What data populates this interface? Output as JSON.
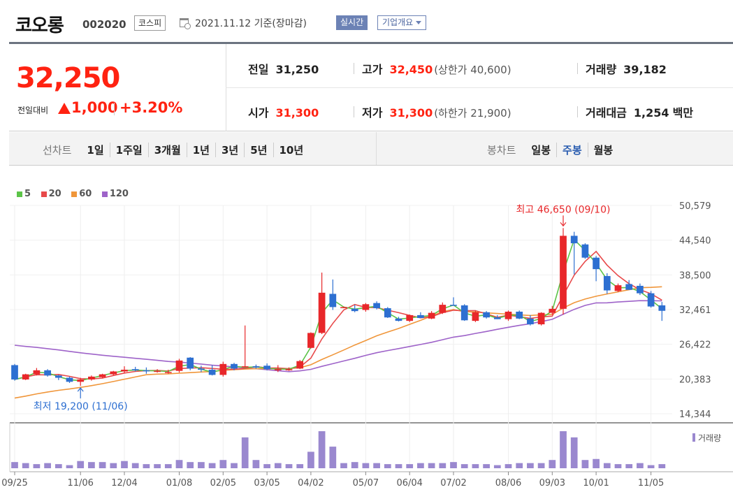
{
  "header": {
    "name": "코오롱",
    "code": "002020",
    "market": "코스피",
    "date": "2021.11.12 기준(장마감)",
    "realtime_label": "실시간",
    "company_label": "기업개요"
  },
  "quote": {
    "price": "32,250",
    "diff_label": "전일대비",
    "diff_value": "1,000",
    "diff_pct": "+3.20%",
    "prev_label": "전일",
    "prev": "31,250",
    "open_label": "시가",
    "open": "31,300",
    "high_label": "고가",
    "high": "32,450",
    "upper_limit": "(상한가 40,600)",
    "low_label": "저가",
    "low": "31,300",
    "lower_limit": "(하한가 21,900)",
    "volume_label": "거래량",
    "volume": "39,182",
    "amount_label": "거래대금",
    "amount": "1,254",
    "amount_unit": "백만"
  },
  "period_bar": {
    "left_label": "선차트",
    "ranges": [
      "1일",
      "1주일",
      "3개월",
      "1년",
      "3년",
      "5년",
      "10년"
    ],
    "right_label": "봉차트",
    "candle_types": [
      "일봉",
      "주봉",
      "월봉"
    ],
    "active_candle": 1
  },
  "colors": {
    "up": "#e8272a",
    "down": "#2d6fd1",
    "ma5": "#5cc448",
    "ma20": "#e8494a",
    "ma60": "#f0963a",
    "ma120": "#9e63c9",
    "volume": "#9a88cf"
  },
  "chart_data": {
    "type": "candlestick",
    "legend": [
      {
        "name": "5",
        "color": "#5cc448"
      },
      {
        "name": "20",
        "color": "#e8494a"
      },
      {
        "name": "60",
        "color": "#f0963a"
      },
      {
        "name": "120",
        "color": "#9e63c9"
      }
    ],
    "y_ticks": [
      "50,579",
      "44,540",
      "38,500",
      "32,461",
      "26,422",
      "20,383",
      "14,344"
    ],
    "ylim": [
      14344,
      50579
    ],
    "x_tick_labels": [
      "09/25",
      "11/06",
      "12/04",
      "01/08",
      "02/05",
      "03/05",
      "04/02",
      "05/07",
      "06/04",
      "07/02",
      "08/06",
      "09/03",
      "10/01",
      "11/05"
    ],
    "x_tick_index": [
      0,
      6,
      10,
      15,
      19,
      23,
      27,
      32,
      36,
      40,
      45,
      49,
      53,
      58
    ],
    "max_annotation": "최고 46,650 (09/10)",
    "max_index": 50,
    "max_value": 46650,
    "min_annotation": "최저 19,200 (11/06)",
    "min_index": 6,
    "min_value": 19200,
    "volume_label": "거래량",
    "candles": [
      {
        "o": 22800,
        "h": 23000,
        "l": 20100,
        "c": 20300
      },
      {
        "o": 20300,
        "h": 21300,
        "l": 20200,
        "c": 21200
      },
      {
        "o": 21200,
        "h": 22300,
        "l": 21000,
        "c": 21900
      },
      {
        "o": 21900,
        "h": 22100,
        "l": 20800,
        "c": 21000
      },
      {
        "o": 21000,
        "h": 21100,
        "l": 20200,
        "c": 20600
      },
      {
        "o": 20600,
        "h": 20800,
        "l": 19700,
        "c": 19900
      },
      {
        "o": 19900,
        "h": 20600,
        "l": 19200,
        "c": 20300
      },
      {
        "o": 20300,
        "h": 21000,
        "l": 20100,
        "c": 20800
      },
      {
        "o": 20700,
        "h": 21300,
        "l": 20500,
        "c": 21200
      },
      {
        "o": 21200,
        "h": 21800,
        "l": 21000,
        "c": 21700
      },
      {
        "o": 21700,
        "h": 22600,
        "l": 21400,
        "c": 22000
      },
      {
        "o": 22100,
        "h": 22500,
        "l": 21700,
        "c": 21900
      },
      {
        "o": 21900,
        "h": 22400,
        "l": 21300,
        "c": 21800
      },
      {
        "o": 21800,
        "h": 22100,
        "l": 21500,
        "c": 21800
      },
      {
        "o": 21600,
        "h": 22000,
        "l": 21300,
        "c": 21600
      },
      {
        "o": 21800,
        "h": 23900,
        "l": 21500,
        "c": 23600
      },
      {
        "o": 24100,
        "h": 24200,
        "l": 21900,
        "c": 22200
      },
      {
        "o": 22200,
        "h": 22700,
        "l": 21600,
        "c": 22000
      },
      {
        "o": 22000,
        "h": 22800,
        "l": 21000,
        "c": 21100
      },
      {
        "o": 21100,
        "h": 23400,
        "l": 20800,
        "c": 23000
      },
      {
        "o": 23000,
        "h": 23200,
        "l": 21900,
        "c": 22200
      },
      {
        "o": 22600,
        "h": 29700,
        "l": 22400,
        "c": 22600
      },
      {
        "o": 22600,
        "h": 22900,
        "l": 22200,
        "c": 22400
      },
      {
        "o": 22700,
        "h": 23100,
        "l": 21900,
        "c": 22100
      },
      {
        "o": 21900,
        "h": 22800,
        "l": 21600,
        "c": 22100
      },
      {
        "o": 21900,
        "h": 22400,
        "l": 21800,
        "c": 22100
      },
      {
        "o": 22200,
        "h": 23700,
        "l": 22100,
        "c": 23500
      },
      {
        "o": 25800,
        "h": 28500,
        "l": 25700,
        "c": 28400
      },
      {
        "o": 28400,
        "h": 38900,
        "l": 28200,
        "c": 35400
      },
      {
        "o": 35200,
        "h": 37700,
        "l": 32400,
        "c": 32900
      },
      {
        "o": 32900,
        "h": 33000,
        "l": 32700,
        "c": 32900
      },
      {
        "o": 32600,
        "h": 33300,
        "l": 32000,
        "c": 32200
      },
      {
        "o": 32400,
        "h": 33600,
        "l": 32100,
        "c": 33400
      },
      {
        "o": 33600,
        "h": 33900,
        "l": 32500,
        "c": 32700
      },
      {
        "o": 32700,
        "h": 32900,
        "l": 31000,
        "c": 31100
      },
      {
        "o": 30900,
        "h": 31200,
        "l": 30400,
        "c": 30500
      },
      {
        "o": 30500,
        "h": 31600,
        "l": 30300,
        "c": 31500
      },
      {
        "o": 31500,
        "h": 32000,
        "l": 31200,
        "c": 31000
      },
      {
        "o": 30900,
        "h": 32200,
        "l": 30800,
        "c": 31900
      },
      {
        "o": 31900,
        "h": 33700,
        "l": 31700,
        "c": 33300
      },
      {
        "o": 33300,
        "h": 34600,
        "l": 33200,
        "c": 33200
      },
      {
        "o": 33200,
        "h": 33400,
        "l": 30500,
        "c": 30600
      },
      {
        "o": 30500,
        "h": 32300,
        "l": 30300,
        "c": 32000
      },
      {
        "o": 32000,
        "h": 32200,
        "l": 30900,
        "c": 31100
      },
      {
        "o": 31100,
        "h": 31500,
        "l": 30800,
        "c": 30800
      },
      {
        "o": 30800,
        "h": 32300,
        "l": 30500,
        "c": 32100
      },
      {
        "o": 32100,
        "h": 32300,
        "l": 30800,
        "c": 30900
      },
      {
        "o": 30900,
        "h": 31500,
        "l": 29700,
        "c": 29900
      },
      {
        "o": 29900,
        "h": 32000,
        "l": 29700,
        "c": 31900
      },
      {
        "o": 31900,
        "h": 33100,
        "l": 31600,
        "c": 32600
      },
      {
        "o": 32600,
        "h": 46650,
        "l": 31600,
        "c": 45300
      },
      {
        "o": 45300,
        "h": 46000,
        "l": 38600,
        "c": 44000
      },
      {
        "o": 43800,
        "h": 44000,
        "l": 41300,
        "c": 41500
      },
      {
        "o": 41500,
        "h": 41800,
        "l": 37400,
        "c": 39500
      },
      {
        "o": 38300,
        "h": 38800,
        "l": 35200,
        "c": 35800
      },
      {
        "o": 35700,
        "h": 37000,
        "l": 35500,
        "c": 36700
      },
      {
        "o": 36900,
        "h": 37600,
        "l": 35900,
        "c": 35900
      },
      {
        "o": 36600,
        "h": 37000,
        "l": 35000,
        "c": 35300
      },
      {
        "o": 35300,
        "h": 35700,
        "l": 32800,
        "c": 33000
      },
      {
        "o": 33200,
        "h": 33800,
        "l": 30500,
        "c": 32250
      }
    ],
    "volumes": [
      6,
      5,
      4,
      5,
      4,
      3,
      7,
      6,
      6,
      5,
      7,
      5,
      4,
      4,
      4,
      8,
      6,
      6,
      5,
      8,
      5,
      30,
      8,
      4,
      5,
      4,
      4,
      16,
      36,
      21,
      5,
      6,
      5,
      5,
      4,
      4,
      4,
      5,
      5,
      5,
      6,
      4,
      4,
      4,
      3,
      4,
      5,
      5,
      5,
      8,
      36,
      30,
      8,
      9,
      5,
      4,
      4,
      5,
      3,
      4
    ]
  }
}
